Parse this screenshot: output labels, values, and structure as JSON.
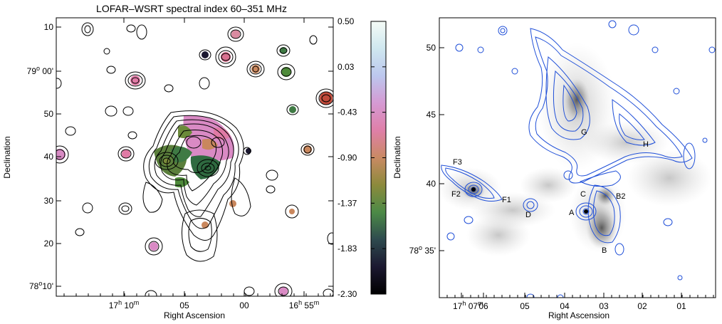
{
  "left_panel": {
    "title": "LOFAR–WSRT spectral index 60–351 MHz",
    "xlabel": "Right Ascension",
    "ylabel": "Declination",
    "y_ticks": [
      {
        "pre": "10",
        "deg": "",
        "min": ""
      },
      {
        "pre": "79",
        "deg": "o",
        "min": " 00'"
      },
      {
        "pre": "50",
        "deg": "",
        "min": ""
      },
      {
        "pre": "40",
        "deg": "",
        "min": ""
      },
      {
        "pre": "30",
        "deg": "",
        "min": ""
      },
      {
        "pre": "20",
        "deg": "",
        "min": ""
      },
      {
        "pre": "78",
        "deg": "o",
        "min": "10'"
      }
    ],
    "x_ticks": [
      {
        "pre": "17",
        "h": "h",
        "post": " 10",
        "m": "m"
      },
      {
        "pre": "05",
        "h": "",
        "post": "",
        "m": ""
      },
      {
        "pre": "00",
        "h": "",
        "post": "",
        "m": ""
      },
      {
        "pre": "16",
        "h": "h",
        "post": " 55",
        "m": "m"
      }
    ]
  },
  "colorbar": {
    "ticks": [
      "0.50",
      "0.03",
      "-0.43",
      "-0.90",
      "-1.37",
      "-1.83",
      "-2.30"
    ],
    "colors": [
      "#f4fbf6",
      "#cfe7ef",
      "#bcc7ee",
      "#d59ad3",
      "#df7fa8",
      "#c98a63",
      "#8c8a3c",
      "#4c8a46",
      "#2e4a4e",
      "#1b1830",
      "#000000"
    ],
    "label": "Declination"
  },
  "right_panel": {
    "xlabel": "Right Ascension",
    "y_ticks": [
      {
        "pre": "50",
        "deg": "",
        "min": ""
      },
      {
        "pre": "45",
        "deg": "",
        "min": ""
      },
      {
        "pre": "40",
        "deg": "",
        "min": ""
      },
      {
        "pre": "78",
        "deg": "o",
        "min": " 35'"
      },
      {
        "pre": "35",
        "deg": "",
        "min": ""
      }
    ],
    "x_ticks": [
      {
        "pre": "17",
        "h": "h",
        "post": " 07",
        "m": "m"
      },
      {
        "pre": "06",
        "h": "",
        "post": "",
        "m": ""
      },
      {
        "pre": "05",
        "h": "",
        "post": "",
        "m": ""
      },
      {
        "pre": "04",
        "h": "",
        "post": "",
        "m": ""
      },
      {
        "pre": "03",
        "h": "",
        "post": "",
        "m": ""
      },
      {
        "pre": "02",
        "h": "",
        "post": "",
        "m": ""
      },
      {
        "pre": "01",
        "h": "",
        "post": "",
        "m": ""
      }
    ],
    "source_labels": [
      "F3",
      "F2",
      "F1",
      "D",
      "C",
      "A",
      "B2",
      "B",
      "G",
      "H"
    ]
  },
  "colors": {
    "contour_black": "#000000",
    "contour_blue": "#1f4fd8",
    "grey_emission": "#9a9a9a"
  }
}
